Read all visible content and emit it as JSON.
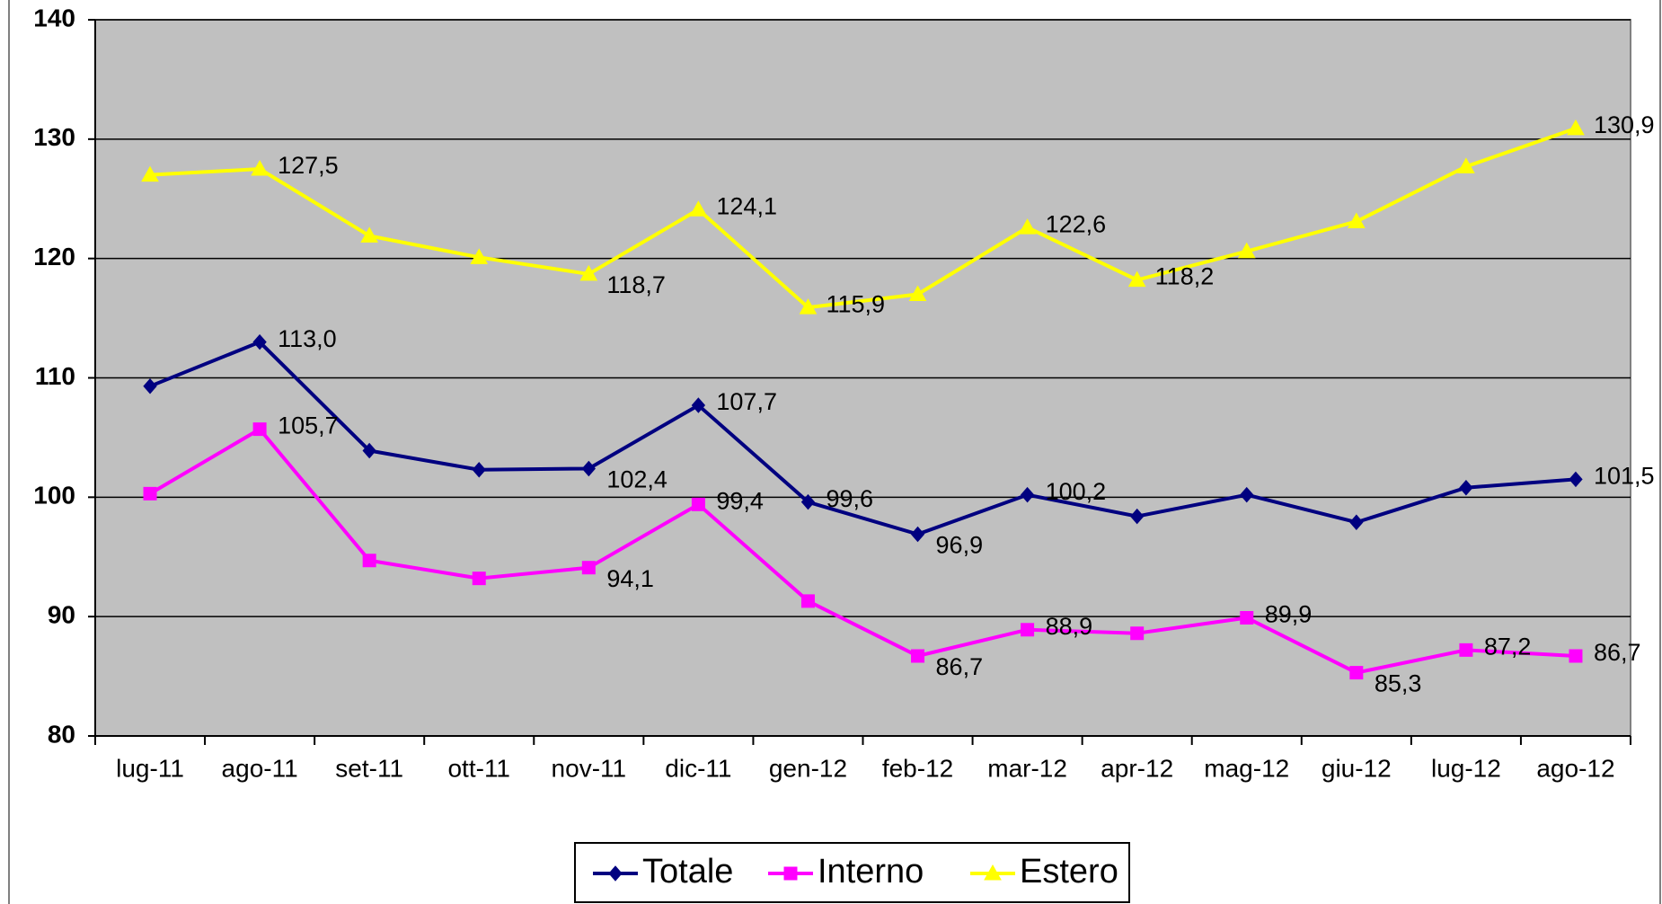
{
  "chart_data": {
    "type": "line",
    "categories": [
      "lug-11",
      "ago-11",
      "set-11",
      "ott-11",
      "nov-11",
      "dic-11",
      "gen-12",
      "feb-12",
      "mar-12",
      "apr-12",
      "mag-12",
      "giu-12",
      "lug-12",
      "ago-12"
    ],
    "series": [
      {
        "name": "Totale",
        "color": "#000080",
        "marker": "diamond",
        "values": [
          109.3,
          113.0,
          103.9,
          102.3,
          102.4,
          107.7,
          99.6,
          96.9,
          100.2,
          98.4,
          100.2,
          97.9,
          100.8,
          101.5
        ],
        "value_labels": [
          null,
          "113,0",
          null,
          null,
          "102,4",
          "107,7",
          "99,6",
          "96,9",
          "100,2",
          null,
          null,
          null,
          null,
          "101,5"
        ]
      },
      {
        "name": "Interno",
        "color": "#ff00ff",
        "marker": "square",
        "values": [
          100.3,
          105.7,
          94.7,
          93.2,
          94.1,
          99.4,
          91.3,
          86.7,
          88.9,
          88.6,
          89.9,
          85.3,
          87.2,
          86.7
        ],
        "value_labels": [
          null,
          "105,7",
          null,
          null,
          "94,1",
          "99,4",
          null,
          "86,7",
          "88,9",
          null,
          "89,9",
          "85,3",
          "87,2",
          "86,7"
        ]
      },
      {
        "name": "Estero",
        "color": "#ffff00",
        "marker": "triangle",
        "values": [
          127.0,
          127.5,
          121.9,
          120.1,
          118.7,
          124.1,
          115.9,
          117.0,
          122.6,
          118.2,
          120.6,
          123.1,
          127.7,
          130.9
        ],
        "value_labels": [
          null,
          "127,5",
          null,
          null,
          "118,7",
          "124,1",
          "115,9",
          null,
          "122,6",
          "118,2",
          null,
          null,
          null,
          "130,9"
        ]
      }
    ],
    "ylim": [
      80,
      140
    ],
    "yticks": [
      80,
      90,
      100,
      110,
      120,
      130,
      140
    ],
    "grid": true,
    "legend": "bottom",
    "plot_background": "#c0c0c0"
  }
}
